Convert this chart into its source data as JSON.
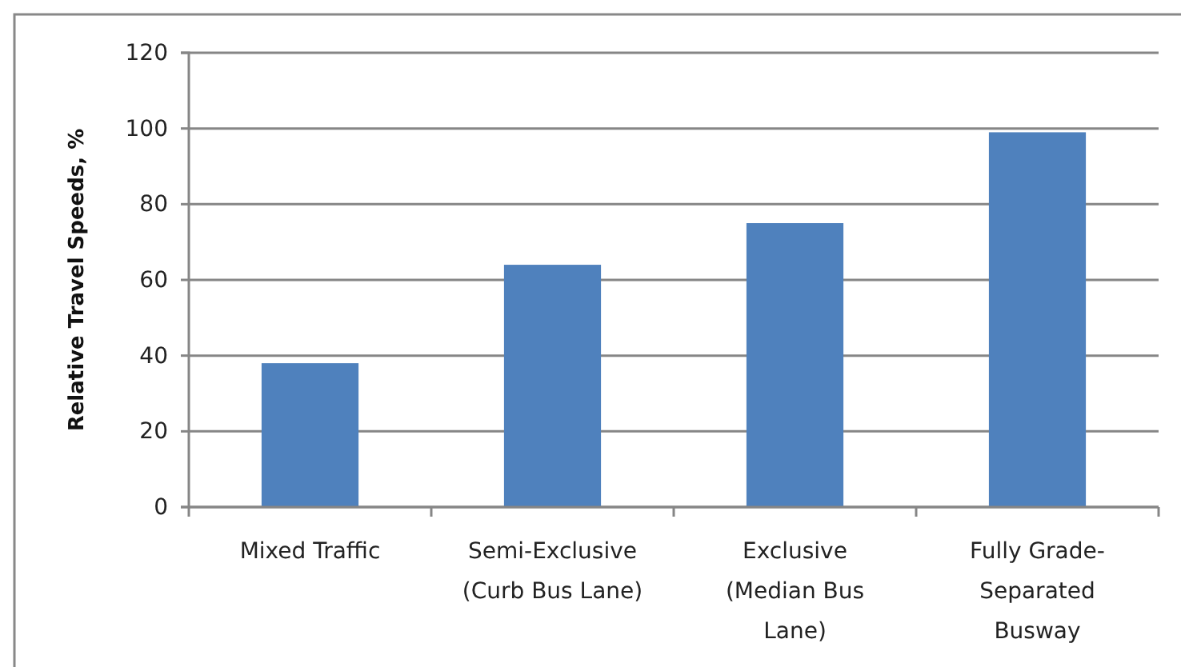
{
  "chart_data": {
    "type": "bar",
    "ylabel": "Relative Travel Speeds, %",
    "categories": [
      "Mixed Traffic",
      "Semi-Exclusive\n(Curb Bus Lane)",
      "Exclusive\n(Median Bus\nLane)",
      "Fully Grade-\nSeparated\nBusway"
    ],
    "values": [
      38,
      64,
      75,
      99
    ],
    "color": "#4f81bd",
    "ylim": [
      0,
      120
    ],
    "yticks": [
      0,
      20,
      40,
      60,
      80,
      100,
      120
    ],
    "grid": "y"
  }
}
